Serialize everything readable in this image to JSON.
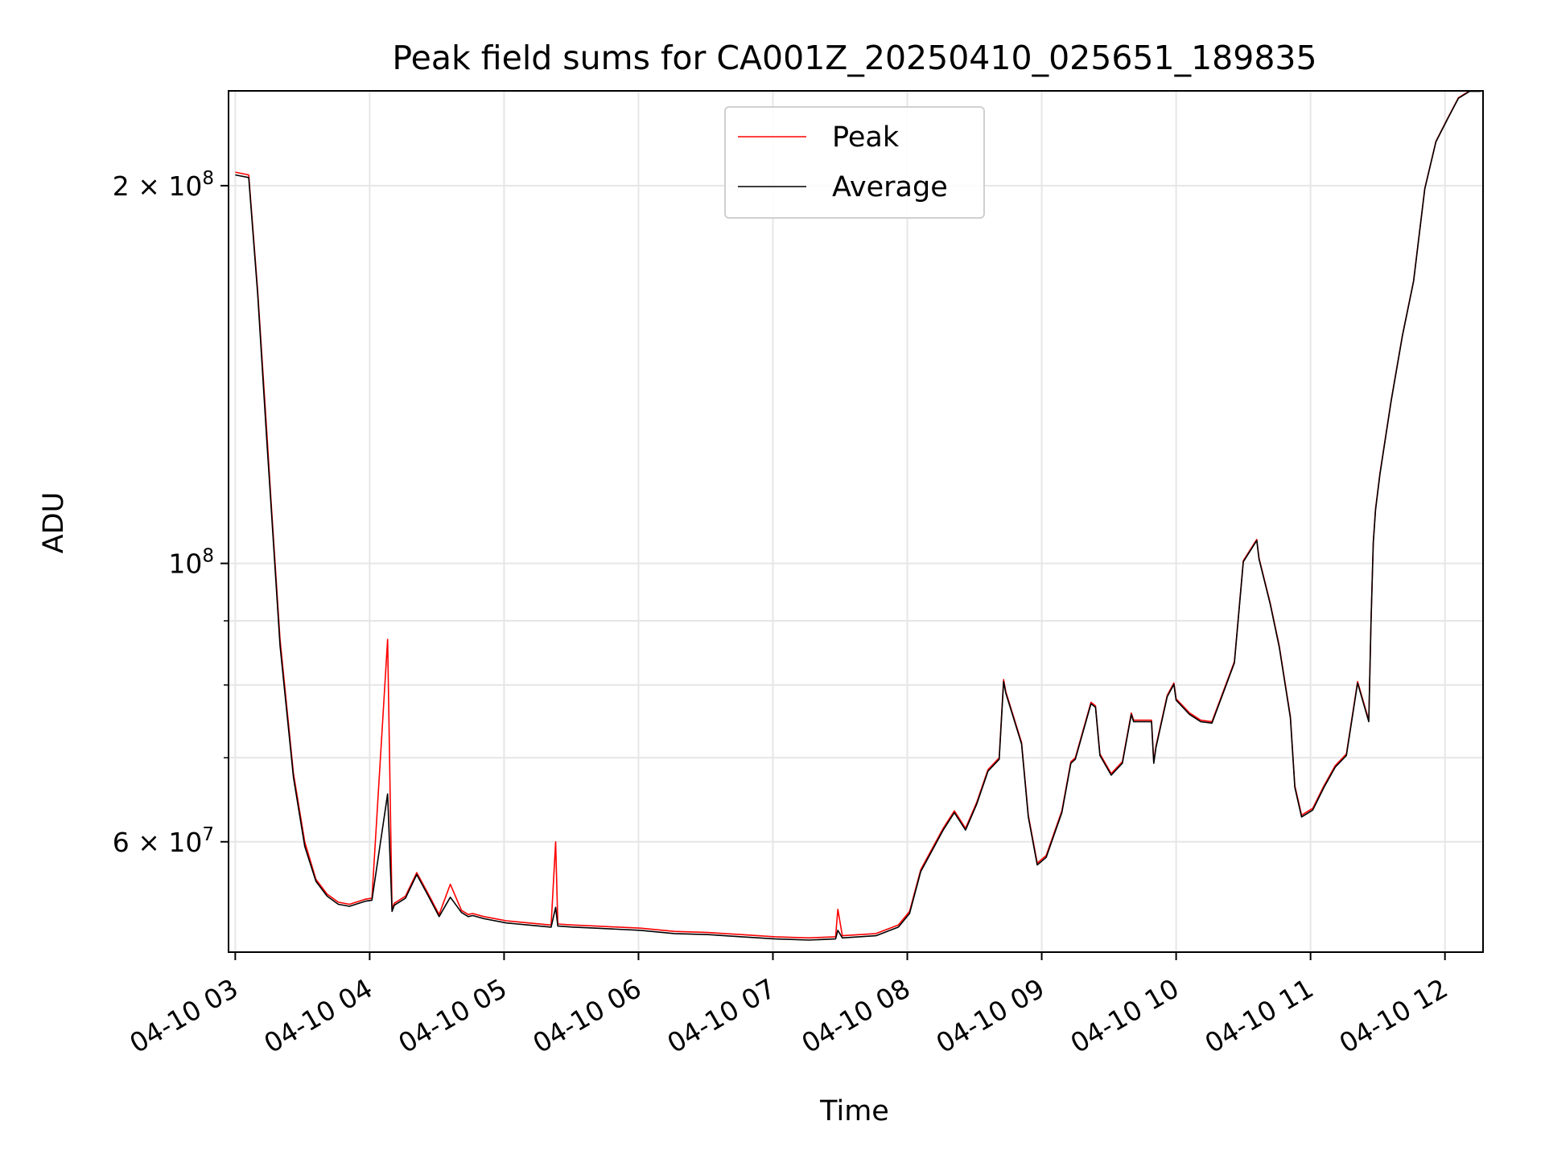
{
  "chart_data": {
    "type": "line",
    "title": "Peak field sums for CA001Z_20250410_025651_189835",
    "xlabel": "Time",
    "ylabel": "ADU",
    "yscale": "log",
    "ylim": [
      49000000,
      238000000
    ],
    "xlim": [
      "2025-04-10 02:57",
      "2025-04-10 12:17"
    ],
    "x_ticks": [
      {
        "t": "2025-04-10 03:00",
        "label": "04-10 03"
      },
      {
        "t": "2025-04-10 04:00",
        "label": "04-10 04"
      },
      {
        "t": "2025-04-10 05:00",
        "label": "04-10 05"
      },
      {
        "t": "2025-04-10 06:00",
        "label": "04-10 06"
      },
      {
        "t": "2025-04-10 07:00",
        "label": "04-10 07"
      },
      {
        "t": "2025-04-10 08:00",
        "label": "04-10 08"
      },
      {
        "t": "2025-04-10 09:00",
        "label": "04-10 09"
      },
      {
        "t": "2025-04-10 10:00",
        "label": "04-10 10"
      },
      {
        "t": "2025-04-10 11:00",
        "label": "04-10 11"
      },
      {
        "t": "2025-04-10 12:00",
        "label": "04-10 12"
      }
    ],
    "y_ticks": [
      {
        "value": 200000000,
        "mantissa": "2",
        "exp": "8"
      },
      {
        "value": 100000000,
        "mantissa": "",
        "exp": "8"
      },
      {
        "value": 60000000,
        "mantissa": "6",
        "exp": "7"
      }
    ],
    "y_minor_ticks": [
      70000000,
      80000000,
      90000000
    ],
    "grid": true,
    "legend_position": "top-center",
    "series": [
      {
        "name": "Peak",
        "color": "#ff0000",
        "x": [
          "2025-04-10 03:00",
          "2025-04-10 03:06",
          "2025-04-10 03:10",
          "2025-04-10 03:14",
          "2025-04-10 03:16",
          "2025-04-10 03:20",
          "2025-04-10 03:26",
          "2025-04-10 03:31",
          "2025-04-10 03:36",
          "2025-04-10 03:41",
          "2025-04-10 03:46",
          "2025-04-10 03:51",
          "2025-04-10 03:58",
          "2025-04-10 04:01",
          "2025-04-10 04:08",
          "2025-04-10 04:10",
          "2025-04-10 04:11",
          "2025-04-10 04:16",
          "2025-04-10 04:21",
          "2025-04-10 04:26",
          "2025-04-10 04:31",
          "2025-04-10 04:36",
          "2025-04-10 04:41",
          "2025-04-10 04:44",
          "2025-04-10 04:46",
          "2025-04-10 04:51",
          "2025-04-10 05:01",
          "2025-04-10 05:11",
          "2025-04-10 05:21",
          "2025-04-10 05:23",
          "2025-04-10 05:24",
          "2025-04-10 05:31",
          "2025-04-10 05:41",
          "2025-04-10 06:01",
          "2025-04-10 06:16",
          "2025-04-10 06:31",
          "2025-04-10 06:46",
          "2025-04-10 07:01",
          "2025-04-10 07:16",
          "2025-04-10 07:28",
          "2025-04-10 07:29",
          "2025-04-10 07:31",
          "2025-04-10 07:46",
          "2025-04-10 07:56",
          "2025-04-10 08:01",
          "2025-04-10 08:06",
          "2025-04-10 08:16",
          "2025-04-10 08:21",
          "2025-04-10 08:26",
          "2025-04-10 08:31",
          "2025-04-10 08:36",
          "2025-04-10 08:41",
          "2025-04-10 08:43",
          "2025-04-10 08:44",
          "2025-04-10 08:51",
          "2025-04-10 08:54",
          "2025-04-10 08:58",
          "2025-04-10 09:02",
          "2025-04-10 09:09",
          "2025-04-10 09:13",
          "2025-04-10 09:15",
          "2025-04-10 09:22",
          "2025-04-10 09:24",
          "2025-04-10 09:26",
          "2025-04-10 09:31",
          "2025-04-10 09:36",
          "2025-04-10 09:40",
          "2025-04-10 09:41",
          "2025-04-10 09:49",
          "2025-04-10 09:50",
          "2025-04-10 09:51",
          "2025-04-10 09:56",
          "2025-04-10 09:59",
          "2025-04-10 10:00",
          "2025-04-10 10:06",
          "2025-04-10 10:11",
          "2025-04-10 10:16",
          "2025-04-10 10:26",
          "2025-04-10 10:30",
          "2025-04-10 10:36",
          "2025-04-10 10:37",
          "2025-04-10 10:42",
          "2025-04-10 10:46",
          "2025-04-10 10:51",
          "2025-04-10 10:53",
          "2025-04-10 10:56",
          "2025-04-10 11:01",
          "2025-04-10 11:06",
          "2025-04-10 11:11",
          "2025-04-10 11:16",
          "2025-04-10 11:21",
          "2025-04-10 11:26",
          "2025-04-10 11:27",
          "2025-04-10 11:28",
          "2025-04-10 11:29",
          "2025-04-10 11:31",
          "2025-04-10 11:36",
          "2025-04-10 11:41",
          "2025-04-10 11:46",
          "2025-04-10 11:51",
          "2025-04-10 11:56",
          "2025-04-10 12:01",
          "2025-04-10 12:06",
          "2025-04-10 12:11",
          "2025-04-10 12:16"
        ],
        "y": [
          205000000,
          204000000,
          165000000,
          128000000,
          112000000,
          87000000,
          68000000,
          60000000,
          56000000,
          54500000,
          53700000,
          53500000,
          54000000,
          54100000,
          87000000,
          53000000,
          53600000,
          54300000,
          56700000,
          54600000,
          52500000,
          55500000,
          52900000,
          52500000,
          52600000,
          52300000,
          51900000,
          51700000,
          51500000,
          60000000,
          51600000,
          51500000,
          51400000,
          51200000,
          50900000,
          50800000,
          50600000,
          50400000,
          50300000,
          50400000,
          53000000,
          50500000,
          50700000,
          51500000,
          52800000,
          57000000,
          61500000,
          63500000,
          61500000,
          64500000,
          68500000,
          70000000,
          80800000,
          79000000,
          72000000,
          63000000,
          57700000,
          58500000,
          63500000,
          69500000,
          70000000,
          77500000,
          77000000,
          70500000,
          68000000,
          69500000,
          76000000,
          75000000,
          75000000,
          69500000,
          71500000,
          78500000,
          80300000,
          78000000,
          76000000,
          75000000,
          74800000,
          83500000,
          100500000,
          104500000,
          101000000,
          93000000,
          86000000,
          75500000,
          66500000,
          63000000,
          63800000,
          66500000,
          69000000,
          70500000,
          80500000,
          75000000,
          90000000,
          104000000,
          110500000,
          118000000,
          135000000,
          152000000,
          168000000,
          199000000,
          217000000,
          226000000,
          235000000,
          238000000,
          238000000
        ]
      },
      {
        "name": "Average",
        "color": "#000000",
        "x": [
          "2025-04-10 03:00",
          "2025-04-10 03:06",
          "2025-04-10 03:10",
          "2025-04-10 03:14",
          "2025-04-10 03:16",
          "2025-04-10 03:20",
          "2025-04-10 03:26",
          "2025-04-10 03:31",
          "2025-04-10 03:36",
          "2025-04-10 03:41",
          "2025-04-10 03:46",
          "2025-04-10 03:51",
          "2025-04-10 03:58",
          "2025-04-10 04:01",
          "2025-04-10 04:08",
          "2025-04-10 04:10",
          "2025-04-10 04:11",
          "2025-04-10 04:16",
          "2025-04-10 04:21",
          "2025-04-10 04:26",
          "2025-04-10 04:31",
          "2025-04-10 04:36",
          "2025-04-10 04:41",
          "2025-04-10 04:44",
          "2025-04-10 04:46",
          "2025-04-10 04:51",
          "2025-04-10 05:01",
          "2025-04-10 05:11",
          "2025-04-10 05:21",
          "2025-04-10 05:23",
          "2025-04-10 05:24",
          "2025-04-10 05:31",
          "2025-04-10 05:41",
          "2025-04-10 06:01",
          "2025-04-10 06:16",
          "2025-04-10 06:31",
          "2025-04-10 06:46",
          "2025-04-10 07:01",
          "2025-04-10 07:16",
          "2025-04-10 07:28",
          "2025-04-10 07:29",
          "2025-04-10 07:31",
          "2025-04-10 07:46",
          "2025-04-10 07:56",
          "2025-04-10 08:01",
          "2025-04-10 08:06",
          "2025-04-10 08:16",
          "2025-04-10 08:21",
          "2025-04-10 08:26",
          "2025-04-10 08:31",
          "2025-04-10 08:36",
          "2025-04-10 08:41",
          "2025-04-10 08:43",
          "2025-04-10 08:44",
          "2025-04-10 08:51",
          "2025-04-10 08:54",
          "2025-04-10 08:58",
          "2025-04-10 09:02",
          "2025-04-10 09:09",
          "2025-04-10 09:13",
          "2025-04-10 09:15",
          "2025-04-10 09:22",
          "2025-04-10 09:24",
          "2025-04-10 09:26",
          "2025-04-10 09:31",
          "2025-04-10 09:36",
          "2025-04-10 09:40",
          "2025-04-10 09:41",
          "2025-04-10 09:49",
          "2025-04-10 09:50",
          "2025-04-10 09:51",
          "2025-04-10 09:56",
          "2025-04-10 09:59",
          "2025-04-10 10:00",
          "2025-04-10 10:06",
          "2025-04-10 10:11",
          "2025-04-10 10:16",
          "2025-04-10 10:26",
          "2025-04-10 10:30",
          "2025-04-10 10:36",
          "2025-04-10 10:37",
          "2025-04-10 10:42",
          "2025-04-10 10:46",
          "2025-04-10 10:51",
          "2025-04-10 10:53",
          "2025-04-10 10:56",
          "2025-04-10 11:01",
          "2025-04-10 11:06",
          "2025-04-10 11:11",
          "2025-04-10 11:16",
          "2025-04-10 11:21",
          "2025-04-10 11:26",
          "2025-04-10 11:27",
          "2025-04-10 11:28",
          "2025-04-10 11:29",
          "2025-04-10 11:31",
          "2025-04-10 11:36",
          "2025-04-10 11:41",
          "2025-04-10 11:46",
          "2025-04-10 11:51",
          "2025-04-10 11:56",
          "2025-04-10 12:01",
          "2025-04-10 12:06",
          "2025-04-10 12:11",
          "2025-04-10 12:16"
        ],
        "y": [
          204000000,
          203000000,
          164000000,
          126000000,
          111000000,
          86000000,
          67500000,
          59500000,
          55800000,
          54300000,
          53500000,
          53300000,
          53800000,
          53900000,
          65500000,
          52800000,
          53400000,
          54100000,
          56500000,
          54400000,
          52300000,
          54200000,
          52700000,
          52300000,
          52400000,
          52100000,
          51700000,
          51500000,
          51300000,
          53200000,
          51400000,
          51300000,
          51200000,
          51000000,
          50700000,
          50600000,
          50400000,
          50200000,
          50100000,
          50200000,
          51000000,
          50300000,
          50500000,
          51300000,
          52600000,
          56800000,
          61300000,
          63300000,
          61300000,
          64300000,
          68300000,
          69800000,
          80500000,
          78800000,
          71800000,
          62800000,
          57500000,
          58300000,
          63300000,
          69300000,
          69800000,
          77300000,
          76800000,
          70300000,
          67800000,
          69300000,
          75800000,
          74800000,
          74800000,
          69300000,
          71300000,
          78300000,
          80100000,
          77800000,
          75800000,
          74800000,
          74600000,
          83300000,
          100300000,
          104300000,
          100800000,
          92800000,
          85800000,
          75300000,
          66300000,
          62800000,
          63600000,
          66300000,
          68800000,
          70300000,
          80300000,
          74800000,
          89800000,
          103800000,
          110300000,
          117800000,
          134800000,
          151800000,
          167800000,
          198800000,
          216800000,
          225800000,
          234800000,
          237800000,
          237800000
        ]
      }
    ]
  }
}
